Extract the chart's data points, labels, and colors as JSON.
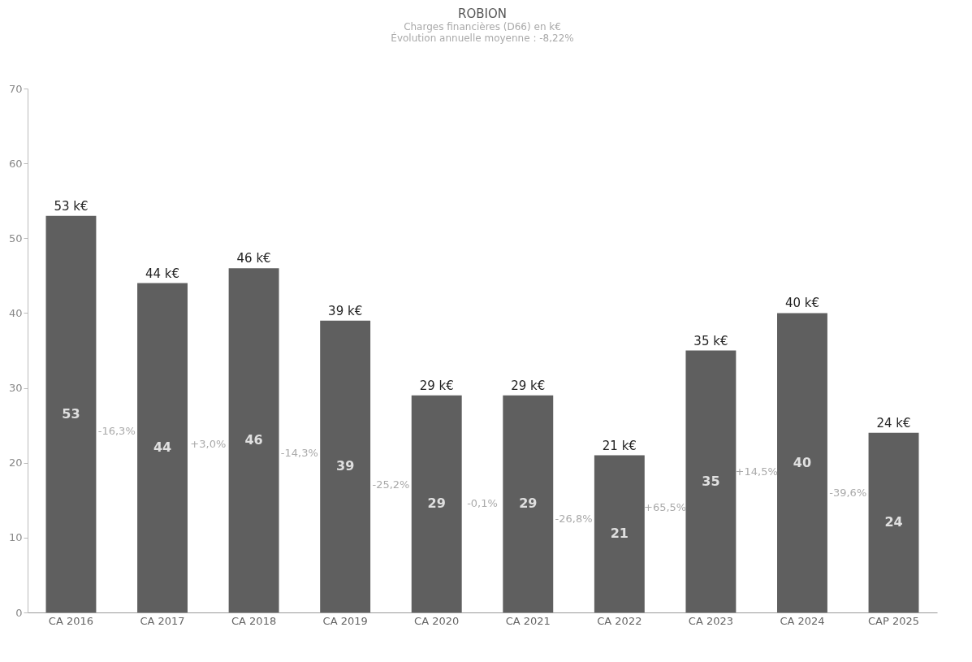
{
  "chart_data": {
    "type": "bar",
    "title": "ROBION",
    "subtitle": "Charges financières (D66) en k€\nÉvolution annuelle moyenne : -8,22%",
    "categories": [
      "CA 2016",
      "CA 2017",
      "CA 2018",
      "CA 2019",
      "CA 2020",
      "CA 2021",
      "CA 2022",
      "CA 2023",
      "CA 2024",
      "CAP 2025"
    ],
    "values": [
      53,
      44,
      46,
      39,
      29,
      29,
      21,
      35,
      40,
      24
    ],
    "data_labels": true,
    "color": "#5f5f5f",
    "annotations": [
      {
        "text": "53 k€",
        "x": "CA 2016",
        "y": 53
      },
      {
        "text": "44 k€",
        "x": "CA 2017",
        "y": 44
      },
      {
        "text": "46 k€",
        "x": "CA 2018",
        "y": 46
      },
      {
        "text": "39 k€",
        "x": "CA 2019",
        "y": 39
      },
      {
        "text": "29 k€",
        "x": "CA 2020",
        "y": 29
      },
      {
        "text": "29 k€",
        "x": "CA 2021",
        "y": 29
      },
      {
        "text": "21 k€",
        "x": "CA 2022",
        "y": 21
      },
      {
        "text": "35 k€",
        "x": "CA 2023",
        "y": 35
      },
      {
        "text": "40 k€",
        "x": "CA 2024",
        "y": 40
      },
      {
        "text": "24 k€",
        "x": "CAP 2025",
        "y": 24
      },
      "-16,3%",
      "+3,0%",
      "-14,3%",
      "-25,2%",
      "-0,1%",
      "-26,8%",
      "+65,5%",
      "+14,5%",
      "-39,6%"
    ],
    "ylim": [
      0,
      70
    ],
    "yticks": [
      0,
      10,
      20,
      30,
      40,
      50,
      60,
      70
    ],
    "grid": false
  }
}
